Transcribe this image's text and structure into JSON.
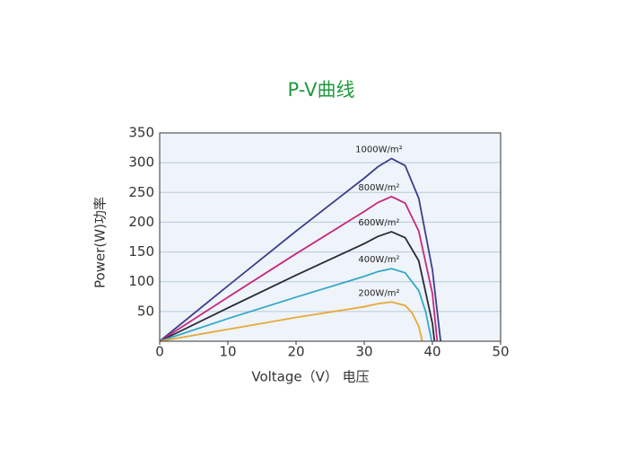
{
  "chart_data": {
    "type": "line",
    "title": "P-V曲线",
    "title_color": "#1e9a3c",
    "x_label": "Voltage（V） 电压",
    "y_label": "Power(W)功率",
    "xlim": [
      0,
      50
    ],
    "xticks": [
      0,
      10,
      20,
      30,
      40,
      50
    ],
    "ylim": [
      0,
      350
    ],
    "yticks": [
      50,
      100,
      150,
      200,
      250,
      300,
      350
    ],
    "grid": true,
    "series": [
      {
        "name": "1000W/m²",
        "color": "#3b3f8c",
        "x": [
          0,
          10,
          20,
          30,
          32,
          34,
          36,
          38,
          40,
          41.2
        ],
        "values": [
          0,
          93,
          185,
          274,
          293,
          307,
          295,
          240,
          120,
          0
        ]
      },
      {
        "name": "800W/m²",
        "color": "#c8287c",
        "x": [
          0,
          10,
          20,
          30,
          32,
          34,
          36,
          38,
          40,
          40.7
        ],
        "values": [
          0,
          74,
          147,
          218,
          233,
          243,
          232,
          185,
          80,
          0
        ]
      },
      {
        "name": "600W/m²",
        "color": "#2a2a3a",
        "x": [
          0,
          10,
          20,
          30,
          32,
          34,
          36,
          38,
          40,
          40.3
        ],
        "values": [
          0,
          56,
          111,
          164,
          176,
          184,
          174,
          135,
          30,
          0
        ]
      },
      {
        "name": "400W/m²",
        "color": "#34a8c8",
        "x": [
          0,
          10,
          20,
          30,
          32,
          34,
          36,
          38,
          39,
          39.9
        ],
        "values": [
          0,
          38,
          74,
          109,
          117,
          122,
          115,
          85,
          50,
          0
        ]
      },
      {
        "name": "200W/m²",
        "color": "#e8a838",
        "x": [
          0,
          10,
          20,
          30,
          32,
          34,
          36,
          37,
          38,
          38.5
        ],
        "values": [
          0,
          20,
          40,
          58,
          63,
          66,
          60,
          48,
          25,
          0
        ]
      }
    ]
  }
}
